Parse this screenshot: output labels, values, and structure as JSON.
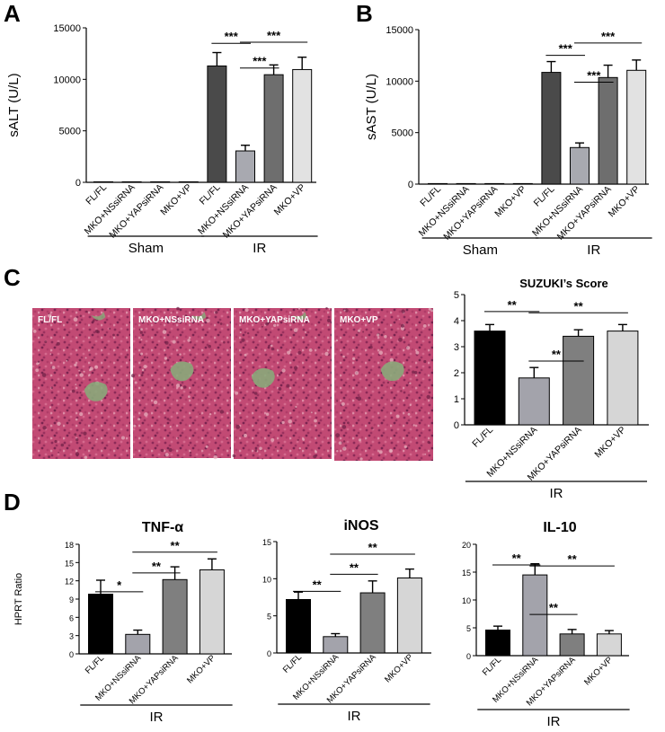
{
  "panels": {
    "A": "A",
    "B": "B",
    "C": "C",
    "D": "D"
  },
  "colors": {
    "sham": "#000000",
    "fl_fl": "#4a4a4a",
    "nssirna": "#a8a9b0",
    "yapsirna": "#6e6e6e",
    "vp": "#e2e2e2",
    "c_fl": "#000000",
    "c_ns": "#a3a3ab",
    "c_yap": "#7f7f7f",
    "c_vp": "#d6d6d6",
    "tissue_pink": "#c2456f",
    "tissue_green": "#8aa87a"
  },
  "histology": {
    "labels": [
      "FL/FL",
      "MKO+NSsiRNA",
      "MKO+YAPsiRNA",
      "MKO+VP"
    ]
  },
  "chart_data": [
    {
      "id": "A",
      "type": "bar",
      "ylabel": "sALT (U/L)",
      "ylim": [
        0,
        15000
      ],
      "yticks": [
        0,
        5000,
        10000,
        15000
      ],
      "categories": [
        "FL/FL",
        "MKO+NSsiRNA",
        "MKO+YAPsiRNA",
        "MKO+VP",
        "FL/FL",
        "MKO+NSsiRNA",
        "MKO+YAPsiRNA",
        "MKO+VP"
      ],
      "values": [
        20,
        20,
        20,
        20,
        11300,
        3050,
        10450,
        10950
      ],
      "errors": [
        0,
        0,
        0,
        0,
        1300,
        550,
        950,
        1200
      ],
      "groups": [
        {
          "label": "Sham",
          "from": 0,
          "to": 3
        },
        {
          "label": "IR",
          "from": 4,
          "to": 7
        }
      ],
      "significance": [
        {
          "from": 4,
          "to": 5,
          "label": "***",
          "y": 13500
        },
        {
          "from": 5,
          "to": 7,
          "label": "***",
          "y": 13600
        },
        {
          "from": 5,
          "to": 6,
          "label": "***",
          "y": 11100
        }
      ]
    },
    {
      "id": "B",
      "type": "bar",
      "ylabel": "sAST (U/L)",
      "ylim": [
        0,
        15000
      ],
      "yticks": [
        0,
        5000,
        10000,
        15000
      ],
      "categories": [
        "FL/FL",
        "MKO+NSsiRNA",
        "MKO+YAPsiRNA",
        "MKO+VP",
        "FL/FL",
        "MKO+NSsiRNA",
        "MKO+YAPsiRNA",
        "MKO+VP"
      ],
      "values": [
        20,
        20,
        20,
        20,
        10850,
        3550,
        10350,
        11050
      ],
      "errors": [
        0,
        0,
        0,
        0,
        1050,
        450,
        1200,
        1000
      ],
      "groups": [
        {
          "label": "Sham",
          "from": 0,
          "to": 3
        },
        {
          "label": "IR",
          "from": 4,
          "to": 7
        }
      ],
      "significance": [
        {
          "from": 4,
          "to": 5,
          "label": "***",
          "y": 12500
        },
        {
          "from": 5,
          "to": 7,
          "label": "***",
          "y": 13700
        },
        {
          "from": 5,
          "to": 6,
          "label": "***",
          "y": 9900
        }
      ]
    },
    {
      "id": "C",
      "type": "bar",
      "title": "SUZUKI’s Score",
      "ylim": [
        0,
        5
      ],
      "yticks": [
        0,
        1,
        2,
        3,
        4,
        5
      ],
      "categories": [
        "FL/FL",
        "MKO+NSsiRNA",
        "MKO+YAPsiRNA",
        "MKO+VP"
      ],
      "values": [
        3.6,
        1.8,
        3.4,
        3.6
      ],
      "errors": [
        0.25,
        0.4,
        0.25,
        0.25
      ],
      "groups": [
        {
          "label": "IR",
          "from": 0,
          "to": 3
        }
      ],
      "significance": [
        {
          "from": 0,
          "to": 1,
          "label": "**",
          "y": 4.35
        },
        {
          "from": 1,
          "to": 3,
          "label": "**",
          "y": 4.3
        },
        {
          "from": 1,
          "to": 2,
          "label": "**",
          "y": 2.45
        }
      ]
    },
    {
      "id": "D1",
      "type": "bar",
      "title": "TNF-α",
      "ylabel": "HPRT Ratio",
      "ylim": [
        0,
        18
      ],
      "yticks": [
        0,
        3,
        6,
        9,
        12,
        15,
        18
      ],
      "categories": [
        "FL/FL",
        "MKO+NSsiRNA",
        "MKO+YAPsiRNA",
        "MKO+VP"
      ],
      "values": [
        9.8,
        3.2,
        12.2,
        13.8
      ],
      "errors": [
        2.3,
        0.7,
        2.1,
        1.8
      ],
      "groups": [
        {
          "label": "IR",
          "from": 0,
          "to": 3
        }
      ],
      "significance": [
        {
          "from": 0,
          "to": 1,
          "label": "*",
          "y": 10.2
        },
        {
          "from": 1,
          "to": 2,
          "label": "**",
          "y": 13.3
        },
        {
          "from": 1,
          "to": 3,
          "label": "**",
          "y": 16.7
        }
      ]
    },
    {
      "id": "D2",
      "type": "bar",
      "title": "iNOS",
      "ylim": [
        0,
        15
      ],
      "yticks": [
        0,
        5,
        10,
        15
      ],
      "categories": [
        "FL/FL",
        "MKO+NSsiRNA",
        "MKO+YAPsiRNA",
        "MKO+VP"
      ],
      "values": [
        7.2,
        2.2,
        8.1,
        10.1
      ],
      "errors": [
        1.0,
        0.4,
        1.6,
        1.2
      ],
      "groups": [
        {
          "label": "IR",
          "from": 0,
          "to": 3
        }
      ],
      "significance": [
        {
          "from": 0,
          "to": 1,
          "label": "**",
          "y": 8.3
        },
        {
          "from": 1,
          "to": 2,
          "label": "**",
          "y": 10.6
        },
        {
          "from": 1,
          "to": 3,
          "label": "**",
          "y": 13.3
        }
      ]
    },
    {
      "id": "D3",
      "type": "bar",
      "title": "IL-10",
      "ylim": [
        0,
        20
      ],
      "yticks": [
        0,
        5,
        10,
        15,
        20
      ],
      "categories": [
        "FL/FL",
        "MKO+NSsiRNA",
        "MKO+YAPsiRNA",
        "MKO+VP"
      ],
      "values": [
        4.6,
        14.5,
        3.9,
        3.9
      ],
      "errors": [
        0.7,
        2.0,
        0.8,
        0.6
      ],
      "groups": [
        {
          "label": "IR",
          "from": 0,
          "to": 3
        }
      ],
      "significance": [
        {
          "from": 0,
          "to": 1,
          "label": "**",
          "y": 16.3
        },
        {
          "from": 1,
          "to": 3,
          "label": "**",
          "y": 16.1
        },
        {
          "from": 1,
          "to": 2,
          "label": "**",
          "y": 7.4
        }
      ]
    }
  ]
}
